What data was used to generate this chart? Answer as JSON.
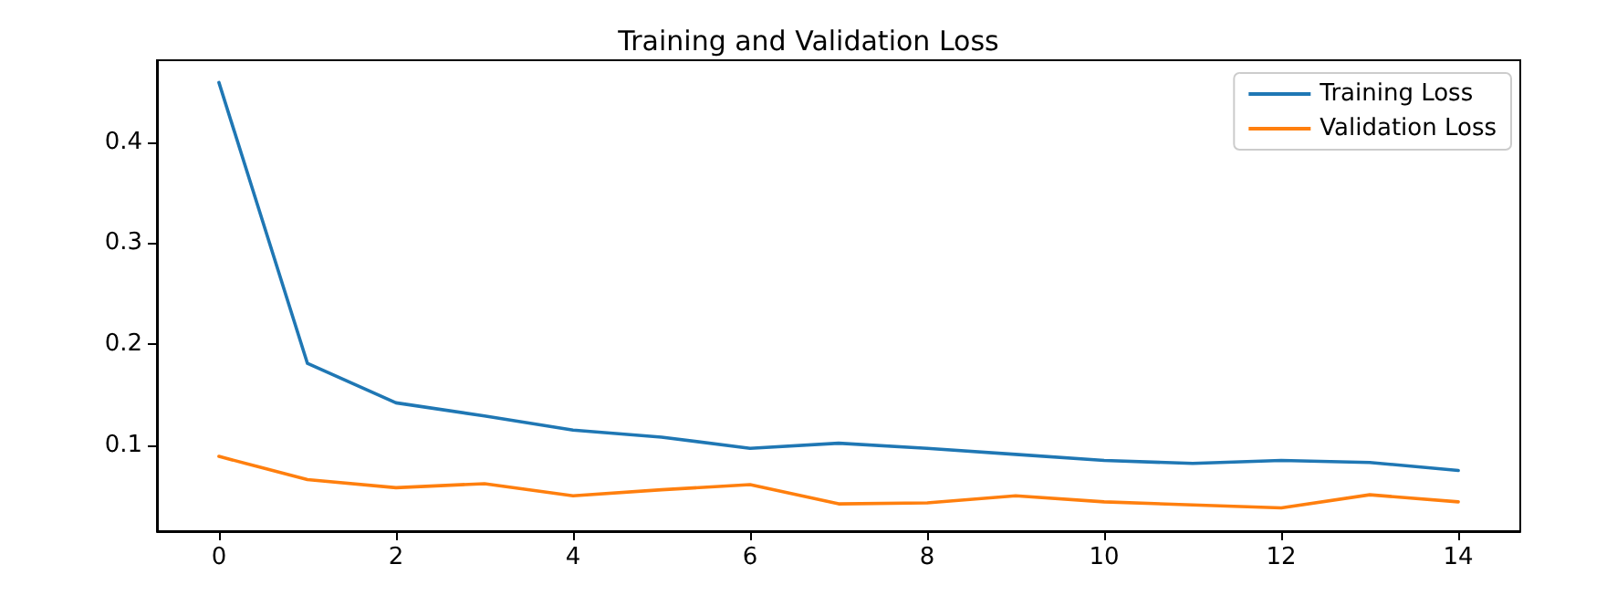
{
  "chart_data": {
    "type": "line",
    "title": "Training and Validation Loss",
    "x": [
      0,
      1,
      2,
      3,
      4,
      5,
      6,
      7,
      8,
      9,
      10,
      11,
      12,
      13,
      14
    ],
    "series": [
      {
        "name": "Training Loss",
        "color": "#1f77b4",
        "values": [
          0.459,
          0.181,
          0.142,
          0.129,
          0.115,
          0.108,
          0.097,
          0.102,
          0.097,
          0.091,
          0.085,
          0.082,
          0.085,
          0.083,
          0.075
        ]
      },
      {
        "name": "Validation Loss",
        "color": "#ff7f0e",
        "values": [
          0.089,
          0.066,
          0.058,
          0.062,
          0.05,
          0.056,
          0.061,
          0.042,
          0.043,
          0.05,
          0.044,
          0.041,
          0.038,
          0.051,
          0.044
        ]
      }
    ],
    "xlim": [
      -0.7,
      14.7
    ],
    "xticks": [
      0,
      2,
      4,
      6,
      8,
      10,
      12,
      14
    ],
    "ylim": [
      0.015,
      0.481
    ],
    "yticks": [
      0.1,
      0.2,
      0.3,
      0.4
    ],
    "grid": false,
    "legend": "top right",
    "marker": "none",
    "line_style": "solid"
  }
}
